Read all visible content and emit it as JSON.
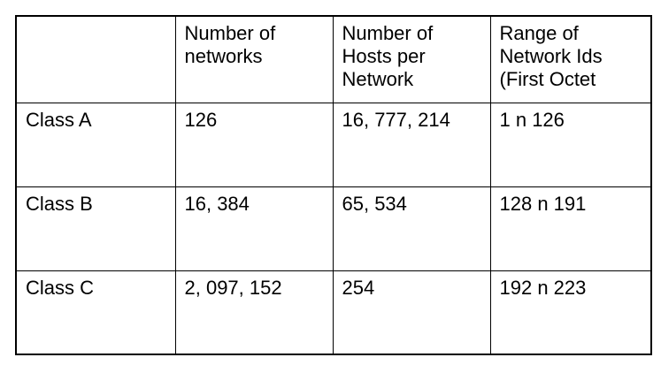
{
  "table": {
    "header": {
      "empty": "",
      "networks": [
        "Number of",
        "networks"
      ],
      "hosts": [
        "Number of",
        "Hosts per",
        "Network"
      ],
      "range": [
        "Range of",
        "Network Ids",
        "(First Octet"
      ]
    },
    "rows": [
      {
        "class": "Class A",
        "networks": "126",
        "hosts": "16, 777, 214",
        "range": "1 n 126"
      },
      {
        "class": "Class B",
        "networks": "16, 384",
        "hosts": "65, 534",
        "range": "128 n 191"
      },
      {
        "class": "Class C",
        "networks": "2, 097, 152",
        "hosts": "254",
        "range": "192 n 223"
      }
    ]
  }
}
